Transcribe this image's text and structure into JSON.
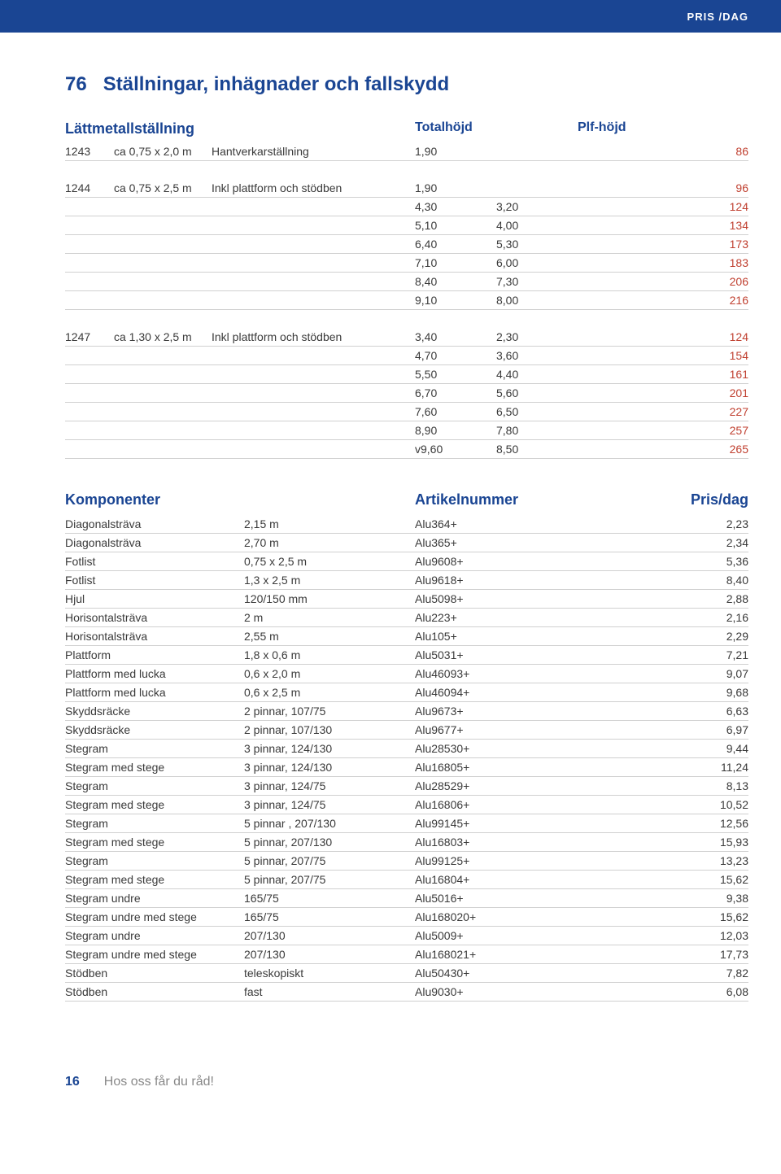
{
  "colors": {
    "brand_blue": "#1a4593",
    "rule": "#d0d0d0",
    "price_red": "#c04030",
    "text": "#3a3a3a",
    "muted": "#888888",
    "bg": "#ffffff"
  },
  "header": {
    "label": "PRIS /DAG"
  },
  "page_title_num": "76",
  "page_title_text": "Ställningar, inhägnader och fallskydd",
  "section1": {
    "title": "Lättmetallställning",
    "col2": "Totalhöjd",
    "col3": "Plf-höjd"
  },
  "block_a": {
    "code": "1243",
    "dim": "ca 0,75 x 2,0 m",
    "desc": "Hantverkarställning",
    "rows": [
      {
        "v1": "1,90",
        "v2": "86"
      }
    ]
  },
  "block_b": {
    "code": "1244",
    "dim": "ca 0,75 x 2,5 m",
    "desc": "Inkl plattform och stödben",
    "rows": [
      {
        "v1": "1,90",
        "v2": "96"
      },
      {
        "v1": "4,30",
        "v2": "3,20",
        "v3": "124"
      },
      {
        "v1": "5,10",
        "v2": "4,00",
        "v3": "134"
      },
      {
        "v1": "6,40",
        "v2": "5,30",
        "v3": "173"
      },
      {
        "v1": "7,10",
        "v2": "6,00",
        "v3": "183"
      },
      {
        "v1": "8,40",
        "v2": "7,30",
        "v3": "206"
      },
      {
        "v1": "9,10",
        "v2": "8,00",
        "v3": "216"
      }
    ]
  },
  "block_c": {
    "code": "1247",
    "dim": "ca 1,30 x 2,5 m",
    "desc": "Inkl plattform och stödben",
    "rows": [
      {
        "v1": "3,40",
        "v2": "2,30",
        "v3": "124"
      },
      {
        "v1": "4,70",
        "v2": "3,60",
        "v3": "154"
      },
      {
        "v1": "5,50",
        "v2": "4,40",
        "v3": "161"
      },
      {
        "v1": "6,70",
        "v2": "5,60",
        "v3": "201"
      },
      {
        "v1": "7,60",
        "v2": "6,50",
        "v3": "227"
      },
      {
        "v1": "8,90",
        "v2": "7,80",
        "v3": "257"
      },
      {
        "v1": "v9,60",
        "v2": "8,50",
        "v3": "265"
      }
    ]
  },
  "komp": {
    "title": "Komponenter",
    "col_art": "Artikelnummer",
    "col_pris": "Pris/dag",
    "rows": [
      {
        "name": "Diagonalsträva",
        "spec": "2,15 m",
        "art": "Alu364+",
        "pris": "2,23"
      },
      {
        "name": "Diagonalsträva",
        "spec": "2,70 m",
        "art": "Alu365+",
        "pris": "2,34"
      },
      {
        "name": "Fotlist",
        "spec": "0,75 x 2,5 m",
        "art": "Alu9608+",
        "pris": "5,36"
      },
      {
        "name": "Fotlist",
        "spec": "1,3 x 2,5 m",
        "art": "Alu9618+",
        "pris": "8,40"
      },
      {
        "name": "Hjul",
        "spec": "120/150 mm",
        "art": "Alu5098+",
        "pris": "2,88"
      },
      {
        "name": "Horisontalsträva",
        "spec": "2 m",
        "art": "Alu223+",
        "pris": "2,16"
      },
      {
        "name": "Horisontalsträva",
        "spec": "2,55 m",
        "art": "Alu105+",
        "pris": "2,29"
      },
      {
        "name": "Plattform",
        "spec": "1,8 x 0,6 m",
        "art": "Alu5031+",
        "pris": "7,21"
      },
      {
        "name": "Plattform med lucka",
        "spec": "0,6 x 2,0 m",
        "art": "Alu46093+",
        "pris": "9,07"
      },
      {
        "name": "Plattform med lucka",
        "spec": "0,6 x 2,5 m",
        "art": "Alu46094+",
        "pris": "9,68"
      },
      {
        "name": "Skyddsräcke",
        "spec": "2 pinnar, 107/75",
        "art": "Alu9673+",
        "pris": "6,63"
      },
      {
        "name": "Skyddsräcke",
        "spec": "2 pinnar, 107/130",
        "art": "Alu9677+",
        "pris": "6,97"
      },
      {
        "name": "Stegram",
        "spec": "3 pinnar, 124/130",
        "art": "Alu28530+",
        "pris": "9,44"
      },
      {
        "name": "Stegram med stege",
        "spec": "3 pinnar, 124/130",
        "art": "Alu16805+",
        "pris": "11,24"
      },
      {
        "name": "Stegram",
        "spec": "3 pinnar, 124/75",
        "art": "Alu28529+",
        "pris": "8,13"
      },
      {
        "name": "Stegram med stege",
        "spec": "3 pinnar, 124/75",
        "art": "Alu16806+",
        "pris": "10,52"
      },
      {
        "name": "Stegram",
        "spec": "5 pinnar , 207/130",
        "art": "Alu99145+",
        "pris": "12,56"
      },
      {
        "name": "Stegram med stege",
        "spec": "5 pinnar, 207/130",
        "art": "Alu16803+",
        "pris": "15,93"
      },
      {
        "name": "Stegram",
        "spec": "5 pinnar, 207/75",
        "art": "Alu99125+",
        "pris": "13,23"
      },
      {
        "name": "Stegram med stege",
        "spec": "5 pinnar, 207/75",
        "art": "Alu16804+",
        "pris": "15,62"
      },
      {
        "name": "Stegram undre",
        "spec": "165/75",
        "art": "Alu5016+",
        "pris": "9,38"
      },
      {
        "name": "Stegram undre med stege",
        "spec": "165/75",
        "art": "Alu168020+",
        "pris": "15,62"
      },
      {
        "name": "Stegram undre",
        "spec": "207/130",
        "art": "Alu5009+",
        "pris": "12,03"
      },
      {
        "name": "Stegram undre med stege",
        "spec": "207/130",
        "art": "Alu168021+",
        "pris": "17,73"
      },
      {
        "name": "Stödben",
        "spec": "teleskopiskt",
        "art": "Alu50430+",
        "pris": "7,82"
      },
      {
        "name": "Stödben",
        "spec": "fast",
        "art": "Alu9030+",
        "pris": "6,08"
      }
    ]
  },
  "footer": {
    "page_num": "16",
    "tagline": "Hos oss får du råd!"
  }
}
